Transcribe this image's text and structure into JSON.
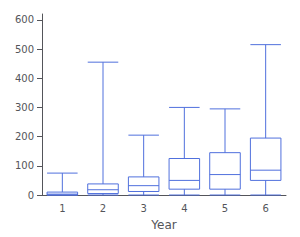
{
  "chart_data": {
    "type": "boxplot",
    "xlabel": "Year",
    "categories": [
      "1",
      "2",
      "3",
      "4",
      "5",
      "6"
    ],
    "boxes": [
      {
        "whislo": 0,
        "q1": 0,
        "med": 3,
        "q3": 10,
        "whishi": 75
      },
      {
        "whislo": 0,
        "q1": 5,
        "med": 18,
        "q3": 38,
        "whishi": 455
      },
      {
        "whislo": 0,
        "q1": 12,
        "med": 32,
        "q3": 62,
        "whishi": 205
      },
      {
        "whislo": 0,
        "q1": 20,
        "med": 50,
        "q3": 125,
        "whishi": 300
      },
      {
        "whislo": 0,
        "q1": 20,
        "med": 70,
        "q3": 145,
        "whishi": 295
      },
      {
        "whislo": 0,
        "q1": 50,
        "med": 85,
        "q3": 195,
        "whishi": 515
      }
    ],
    "ylim": [
      0,
      620
    ],
    "yticks": [
      0,
      100,
      200,
      300,
      400,
      500,
      600
    ],
    "grid": false
  }
}
